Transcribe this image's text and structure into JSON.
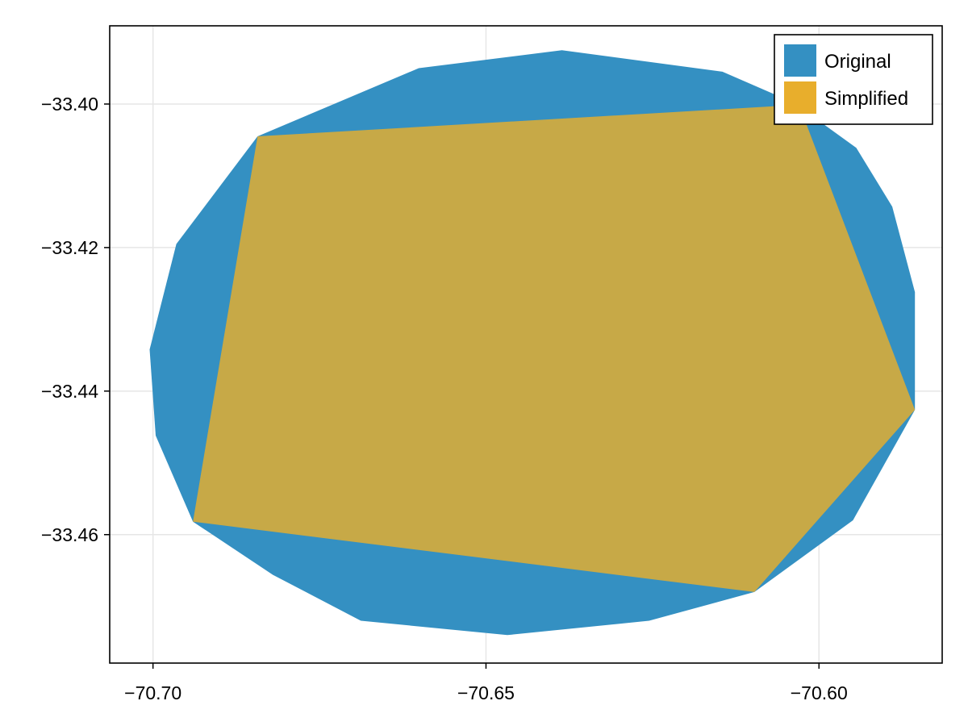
{
  "chart_data": {
    "type": "area",
    "title": "",
    "xlabel": "",
    "ylabel": "",
    "xlim": [
      -70.7065,
      -70.5815
    ],
    "ylim": [
      -33.4779,
      -33.3891
    ],
    "xticks": [
      {
        "value": -70.7,
        "label": "−70.70"
      },
      {
        "value": -70.65,
        "label": "−70.65"
      },
      {
        "value": -70.6,
        "label": "−70.60"
      }
    ],
    "yticks": [
      {
        "value": -33.4,
        "label": "−33.40"
      },
      {
        "value": -33.42,
        "label": "−33.42"
      },
      {
        "value": -33.44,
        "label": "−33.44"
      },
      {
        "value": -33.46,
        "label": "−33.46"
      }
    ],
    "grid": true,
    "legend_position": "top-right",
    "series": [
      {
        "name": "Original",
        "color": "#3490c2",
        "points": [
          [
            -70.6843,
            -33.4045
          ],
          [
            -70.6601,
            -33.395
          ],
          [
            -70.6386,
            -33.3925
          ],
          [
            -70.6145,
            -33.3955
          ],
          [
            -70.6038,
            -33.3998
          ],
          [
            -70.5944,
            -33.4061
          ],
          [
            -70.589,
            -33.4143
          ],
          [
            -70.5856,
            -33.4262
          ],
          [
            -70.5856,
            -33.4426
          ],
          [
            -70.5949,
            -33.458
          ],
          [
            -70.6097,
            -33.468
          ],
          [
            -70.6255,
            -33.472
          ],
          [
            -70.6468,
            -33.474
          ],
          [
            -70.6688,
            -33.472
          ],
          [
            -70.682,
            -33.4656
          ],
          [
            -70.694,
            -33.4582
          ],
          [
            -70.6996,
            -33.4462
          ],
          [
            -70.7005,
            -33.4342
          ],
          [
            -70.6965,
            -33.4195
          ],
          [
            -70.6843,
            -33.4045
          ]
        ]
      },
      {
        "name": "Simplified",
        "color": "#e8ae2c",
        "points": [
          [
            -70.6843,
            -33.4045
          ],
          [
            -70.603,
            -33.4001
          ],
          [
            -70.5856,
            -33.4426
          ],
          [
            -70.6097,
            -33.468
          ],
          [
            -70.694,
            -33.4582
          ],
          [
            -70.6843,
            -33.4045
          ]
        ]
      }
    ]
  }
}
